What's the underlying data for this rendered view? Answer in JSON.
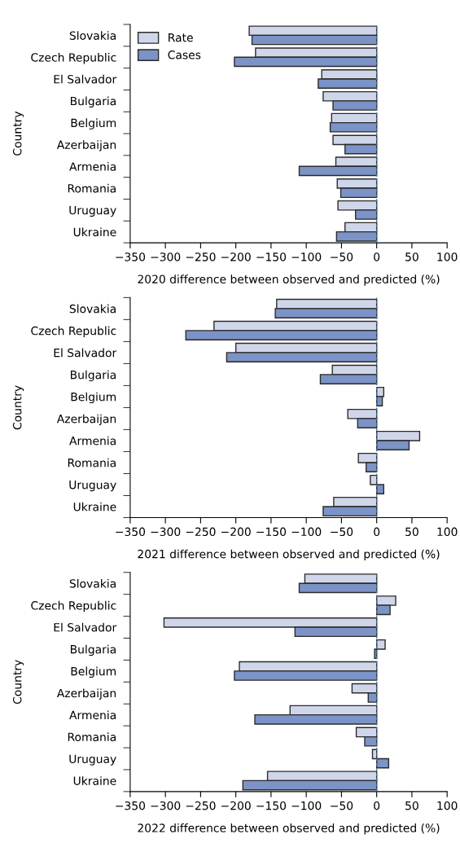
{
  "chart_data": [
    {
      "type": "bar",
      "orientation": "horizontal",
      "categories": [
        "Slovakia",
        "Czech Republic",
        "El Salvador",
        "Bulgaria",
        "Belgium",
        "Azerbaijan",
        "Armenia",
        "Romania",
        "Uruguay",
        "Ukraine"
      ],
      "series": [
        {
          "name": "Rate",
          "color": "#d0d6ea",
          "values": [
            -181,
            -172,
            -78,
            -76,
            -64,
            -62,
            -58,
            -56,
            -55,
            -45
          ]
        },
        {
          "name": "Cases",
          "color": "#7b93c6",
          "values": [
            -177,
            -202,
            -83,
            -62,
            -66,
            -45,
            -110,
            -51,
            -30,
            -57
          ]
        }
      ],
      "xlabel": "2020 difference between observed and predicted (%)",
      "ylabel": "Country",
      "xlim": [
        -350,
        100
      ],
      "xticks": [
        {
          "value": -350,
          "label": "−350"
        },
        {
          "value": -300,
          "label": "−300"
        },
        {
          "value": -250,
          "label": "−250"
        },
        {
          "value": -200,
          "label": "−200"
        },
        {
          "value": -150,
          "label": "−150"
        },
        {
          "value": -100,
          "label": "−100"
        },
        {
          "value": -50,
          "label": "−50"
        },
        0,
        50,
        100
      ],
      "ref_lines": [
        {
          "axis": "x",
          "value": 0,
          "color": "#4a6d8c",
          "line_style": "dashed"
        }
      ],
      "legend": "top left"
    },
    {
      "type": "bar",
      "orientation": "horizontal",
      "categories": [
        "Slovakia",
        "Czech Republic",
        "El Salvador",
        "Bulgaria",
        "Belgium",
        "Azerbaijan",
        "Armenia",
        "Romania",
        "Uruguay",
        "Ukraine"
      ],
      "series": [
        {
          "color": "#d0d6ea",
          "values": [
            -142,
            -231,
            -200,
            -63,
            10,
            -41,
            61,
            -26,
            -9,
            -61
          ]
        },
        {
          "color": "#7b93c6",
          "values": [
            -144,
            -271,
            -213,
            -80,
            8,
            -27,
            46,
            -15,
            10,
            -76
          ]
        }
      ],
      "xlabel": "2021 difference between observed and predicted (%)",
      "ylabel": "Country",
      "xlim": [
        -350,
        100
      ],
      "xticks": [
        {
          "value": -350,
          "label": "−350"
        },
        {
          "value": -300,
          "label": "−300"
        },
        {
          "value": -250,
          "label": "−250"
        },
        {
          "value": -200,
          "label": "−200"
        },
        {
          "value": -150,
          "label": "−150"
        },
        {
          "value": -100,
          "label": "−100"
        },
        {
          "value": -50,
          "label": "−50"
        },
        0,
        50,
        100
      ],
      "ref_lines": [
        {
          "axis": "x",
          "value": 0,
          "color": "#4a6d8c",
          "line_style": "dashed"
        }
      ]
    },
    {
      "type": "bar",
      "orientation": "horizontal",
      "categories": [
        "Slovakia",
        "Czech Republic",
        "El Salvador",
        "Bulgaria",
        "Belgium",
        "Azerbaijan",
        "Armenia",
        "Romania",
        "Uruguay",
        "Ukraine"
      ],
      "series": [
        {
          "color": "#d0d6ea",
          "values": [
            -102,
            27,
            -302,
            12,
            -195,
            -35,
            -123,
            -29,
            -6,
            -155
          ]
        },
        {
          "color": "#7b93c6",
          "values": [
            -110,
            19,
            -116,
            -3,
            -202,
            -12,
            -173,
            -17,
            17,
            -190
          ]
        }
      ],
      "xlabel": "2022 difference between observed and predicted (%)",
      "ylabel": "Country",
      "xlim": [
        -350,
        100
      ],
      "xticks": [
        {
          "value": -350,
          "label": "−350"
        },
        {
          "value": -300,
          "label": "−300"
        },
        {
          "value": -250,
          "label": "−250"
        },
        {
          "value": -200,
          "label": "−200"
        },
        {
          "value": -150,
          "label": "−150"
        },
        {
          "value": -100,
          "label": "−100"
        },
        {
          "value": -50,
          "label": "−50"
        },
        0,
        50,
        100
      ],
      "ref_lines": [
        {
          "axis": "x",
          "value": 0,
          "color": "#4a6d8c",
          "line_style": "dashed"
        }
      ]
    }
  ]
}
